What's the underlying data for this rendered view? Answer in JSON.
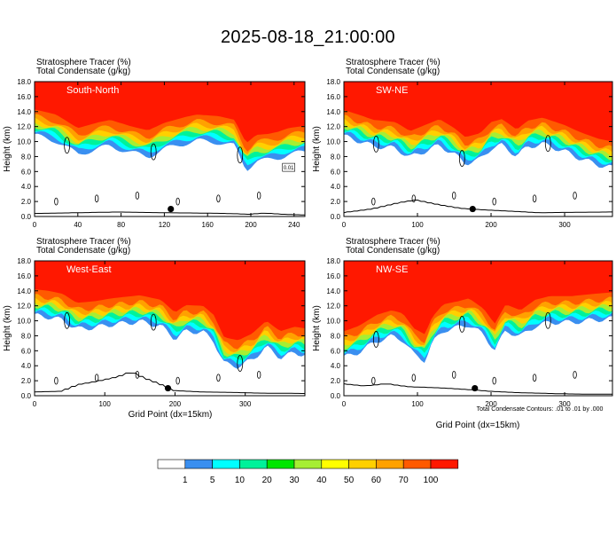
{
  "figure": {
    "title": "2025-08-18_21:00:00",
    "xlabel": "Grid Point (dx=15km)",
    "contour_note": "Total Condensate Contours: .01 to .01 by .000"
  },
  "colors": {
    "levels": [
      "#ffffff",
      "#3a8ff0",
      "#00ffff",
      "#00f29a",
      "#00e600",
      "#a6ee33",
      "#ffff00",
      "#ffd000",
      "#ffa100",
      "#ff5a00",
      "#ff1800"
    ],
    "black": "#000000"
  },
  "colorbar": {
    "labels": [
      "1",
      "5",
      "10",
      "20",
      "30",
      "40",
      "50",
      "60",
      "70",
      "100"
    ]
  },
  "chart_data": [
    {
      "type": "heatmap",
      "name": "South-North",
      "legend": [
        "Stratosphere Tracer   (%)",
        "Total Condensate   (g/kg)"
      ],
      "ylabel": "Height (km)",
      "xlim": [
        0,
        250
      ],
      "ylim": [
        0,
        18
      ],
      "xticks": [
        0,
        40,
        80,
        120,
        160,
        200,
        240
      ],
      "yticks": [
        "0.0",
        "2.0",
        "4.0",
        "6.0",
        "8.0",
        "10.0",
        "12.0",
        "14.0",
        "16.0",
        "18.0"
      ],
      "contour_label": "0.01",
      "marker": {
        "x": 126,
        "y": 1.0
      },
      "base_km": [
        [
          0,
          14.3
        ],
        [
          20,
          13.6
        ],
        [
          40,
          11.8
        ],
        [
          60,
          12.6
        ],
        [
          70,
          12.9
        ],
        [
          90,
          12.0
        ],
        [
          105,
          11.5
        ],
        [
          120,
          12.5
        ],
        [
          140,
          13.3
        ],
        [
          150,
          13.6
        ],
        [
          170,
          13.4
        ],
        [
          185,
          12.9
        ],
        [
          192,
          10.8
        ],
        [
          196,
          9.8
        ],
        [
          205,
          10.9
        ],
        [
          215,
          11.0
        ],
        [
          225,
          11.3
        ],
        [
          235,
          11.8
        ],
        [
          250,
          12.1
        ]
      ],
      "terrain_km": [
        [
          0,
          0.4
        ],
        [
          40,
          0.5
        ],
        [
          80,
          0.6
        ],
        [
          120,
          0.5
        ],
        [
          160,
          0.45
        ],
        [
          180,
          0.4
        ],
        [
          200,
          0.3
        ],
        [
          215,
          0.45
        ],
        [
          230,
          0.3
        ],
        [
          250,
          0.2
        ]
      ]
    },
    {
      "type": "heatmap",
      "name": "SW-NE",
      "legend": [
        "Stratosphere Tracer   (%)",
        "Total Condensate   (g/kg)"
      ],
      "ylabel": "Height (km)",
      "xlim": [
        0,
        365
      ],
      "ylim": [
        0,
        18
      ],
      "xticks": [
        0,
        100,
        200,
        300
      ],
      "yticks": [
        "0.0",
        "2.0",
        "4.0",
        "6.0",
        "8.0",
        "10.0",
        "12.0",
        "14.0",
        "16.0",
        "18.0"
      ],
      "contour_label": "",
      "marker": {
        "x": 175,
        "y": 1.0
      },
      "base_km": [
        [
          0,
          14.2
        ],
        [
          20,
          13.6
        ],
        [
          40,
          12.9
        ],
        [
          70,
          12.6
        ],
        [
          90,
          11.4
        ],
        [
          110,
          12.2
        ],
        [
          130,
          13.0
        ],
        [
          150,
          11.8
        ],
        [
          165,
          10.6
        ],
        [
          185,
          11.1
        ],
        [
          200,
          12.6
        ],
        [
          215,
          13.0
        ],
        [
          235,
          11.6
        ],
        [
          250,
          12.8
        ],
        [
          270,
          13.2
        ],
        [
          300,
          12.2
        ],
        [
          320,
          11.3
        ],
        [
          345,
          10.4
        ],
        [
          365,
          10.0
        ]
      ],
      "terrain_km": [
        [
          0,
          0.5
        ],
        [
          40,
          1.0
        ],
        [
          80,
          1.9
        ],
        [
          100,
          2.2
        ],
        [
          130,
          1.6
        ],
        [
          160,
          1.1
        ],
        [
          190,
          0.9
        ],
        [
          230,
          0.7
        ],
        [
          270,
          0.5
        ],
        [
          310,
          0.55
        ],
        [
          365,
          0.6
        ]
      ]
    },
    {
      "type": "heatmap",
      "name": "West-East",
      "legend": [
        "Stratosphere Tracer   (%)",
        "Total Condensate   (g/kg)"
      ],
      "ylabel": "Height (km)",
      "xlim": [
        0,
        385
      ],
      "ylim": [
        0,
        18
      ],
      "xticks": [
        0,
        100,
        200,
        300
      ],
      "yticks": [
        "0.0",
        "2.0",
        "4.0",
        "6.0",
        "8.0",
        "10.0",
        "12.0",
        "14.0",
        "16.0",
        "18.0"
      ],
      "contour_label": "",
      "marker": {
        "x": 190,
        "y": 1.0
      },
      "base_km": [
        [
          0,
          14.2
        ],
        [
          20,
          14.0
        ],
        [
          40,
          13.6
        ],
        [
          60,
          12.4
        ],
        [
          85,
          12.6
        ],
        [
          110,
          13.0
        ],
        [
          150,
          13.4
        ],
        [
          180,
          12.8
        ],
        [
          200,
          11.1
        ],
        [
          215,
          12.1
        ],
        [
          240,
          12.0
        ],
        [
          255,
          10.8
        ],
        [
          270,
          7.8
        ],
        [
          290,
          7.4
        ],
        [
          310,
          8.3
        ],
        [
          330,
          10.0
        ],
        [
          350,
          8.6
        ],
        [
          370,
          9.2
        ],
        [
          385,
          9.0
        ]
      ],
      "terrain_km": [
        [
          0,
          0.5
        ],
        [
          40,
          0.6
        ],
        [
          65,
          1.5
        ],
        [
          90,
          1.9
        ],
        [
          120,
          2.5
        ],
        [
          140,
          3.2
        ],
        [
          160,
          2.3
        ],
        [
          180,
          1.6
        ],
        [
          200,
          0.7
        ],
        [
          240,
          0.5
        ],
        [
          280,
          0.45
        ],
        [
          320,
          0.35
        ],
        [
          385,
          0.3
        ]
      ]
    },
    {
      "type": "heatmap",
      "name": "NW-SE",
      "legend": [
        "Stratosphere Tracer   (%)",
        "Total Condensate   (g/kg)"
      ],
      "ylabel": "Height (km)",
      "xlim": [
        0,
        365
      ],
      "ylim": [
        0,
        18
      ],
      "xticks": [
        0,
        100,
        200,
        300
      ],
      "yticks": [
        "0.0",
        "2.0",
        "4.0",
        "6.0",
        "8.0",
        "10.0",
        "12.0",
        "14.0",
        "16.0",
        "18.0"
      ],
      "contour_label": "",
      "marker": {
        "x": 178,
        "y": 1.0
      },
      "base_km": [
        [
          0,
          8.6
        ],
        [
          20,
          9.3
        ],
        [
          45,
          10.8
        ],
        [
          65,
          11.4
        ],
        [
          80,
          11.0
        ],
        [
          95,
          9.0
        ],
        [
          110,
          8.2
        ],
        [
          120,
          10.5
        ],
        [
          135,
          12.2
        ],
        [
          155,
          12.6
        ],
        [
          170,
          13.0
        ],
        [
          190,
          11.6
        ],
        [
          205,
          9.6
        ],
        [
          220,
          12.2
        ],
        [
          240,
          11.4
        ],
        [
          260,
          12.8
        ],
        [
          280,
          13.3
        ],
        [
          310,
          13.3
        ],
        [
          340,
          13.6
        ],
        [
          365,
          13.8
        ]
      ],
      "terrain_km": [
        [
          0,
          1.6
        ],
        [
          30,
          1.3
        ],
        [
          60,
          1.6
        ],
        [
          90,
          1.2
        ],
        [
          120,
          1.1
        ],
        [
          160,
          0.9
        ],
        [
          200,
          0.6
        ],
        [
          240,
          0.4
        ],
        [
          280,
          0.3
        ],
        [
          330,
          0.2
        ],
        [
          365,
          0.2
        ]
      ]
    }
  ]
}
